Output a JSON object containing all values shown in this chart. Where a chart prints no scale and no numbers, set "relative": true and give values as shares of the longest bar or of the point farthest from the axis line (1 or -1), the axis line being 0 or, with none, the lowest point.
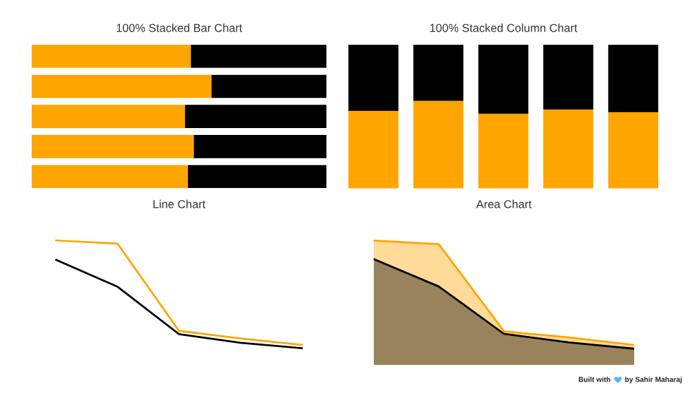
{
  "chart_data": [
    {
      "type": "bar",
      "title": "100% Stacked Bar Chart",
      "orientation": "horizontal",
      "stacked": true,
      "relative": true,
      "categories": [
        null,
        null,
        null,
        null,
        null
      ],
      "series": [
        {
          "color": "#ffa500",
          "values": [
            0.54,
            0.61,
            0.52,
            0.55,
            0.53
          ]
        },
        {
          "color": "#000000",
          "values": [
            0.46,
            0.39,
            0.48,
            0.45,
            0.47
          ]
        }
      ]
    },
    {
      "type": "bar",
      "title": "100% Stacked Column Chart",
      "stacked": true,
      "relative": true,
      "categories": [
        null,
        null,
        null,
        null,
        null
      ],
      "series": [
        {
          "color": "#ffa500",
          "values": [
            0.54,
            0.61,
            0.52,
            0.55,
            0.53
          ]
        },
        {
          "color": "#000000",
          "values": [
            0.46,
            0.39,
            0.48,
            0.45,
            0.47
          ]
        }
      ]
    },
    {
      "type": "line",
      "title": "Line Chart",
      "relative": true,
      "categories": [
        null,
        null,
        null,
        null,
        null
      ],
      "series": [
        {
          "color": "#ffa500",
          "values": [
            1,
            0.97,
            0.16,
            0.09,
            0.03
          ]
        },
        {
          "color": "#000000",
          "values": [
            0.82,
            0.57,
            0.13,
            0.05,
            0
          ]
        }
      ]
    },
    {
      "type": "area",
      "title": "Area Chart",
      "relative": true,
      "categories": [
        null,
        null,
        null,
        null,
        null
      ],
      "series": [
        {
          "color": "#ffa500",
          "values": [
            1,
            0.97,
            0.27,
            0.22,
            0.16
          ]
        },
        {
          "color": "#000000",
          "values": [
            0.85,
            0.63,
            0.25,
            0.18,
            0.13
          ]
        }
      ],
      "annotations": [
        "Built with",
        "by Sahir Maharaj"
      ]
    }
  ]
}
